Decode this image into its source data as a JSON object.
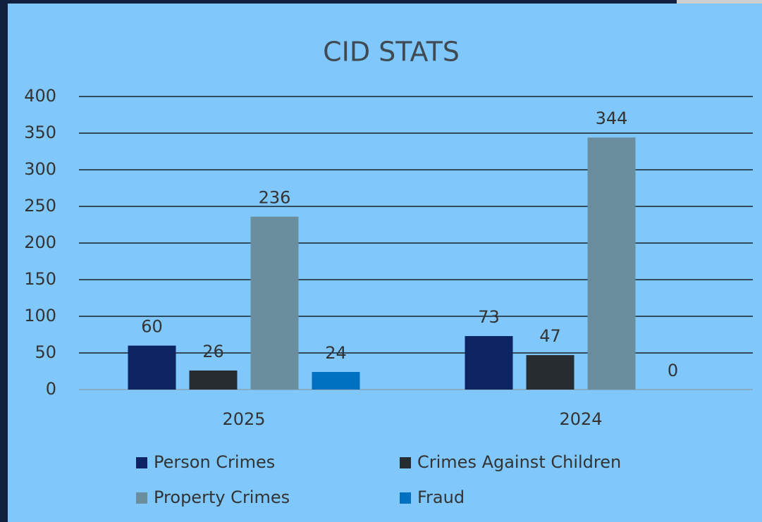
{
  "chart_data": {
    "type": "bar",
    "title": "CID STATS",
    "categories": [
      "2025",
      "2024"
    ],
    "series": [
      {
        "name": "Person Crimes",
        "color": "#0c2461",
        "values": [
          60,
          73
        ]
      },
      {
        "name": "Crimes Against Children",
        "color": "#272c30",
        "values": [
          26,
          47
        ]
      },
      {
        "name": "Property Crimes",
        "color": "#6a8e9e",
        "values": [
          236,
          344
        ]
      },
      {
        "name": "Fraud",
        "color": "#0070c0",
        "values": [
          24,
          0
        ]
      }
    ],
    "ylim": [
      0,
      400
    ],
    "yticks": [
      0,
      50,
      100,
      150,
      200,
      250,
      300,
      350,
      400
    ],
    "grid": true,
    "legend": "bottom"
  }
}
